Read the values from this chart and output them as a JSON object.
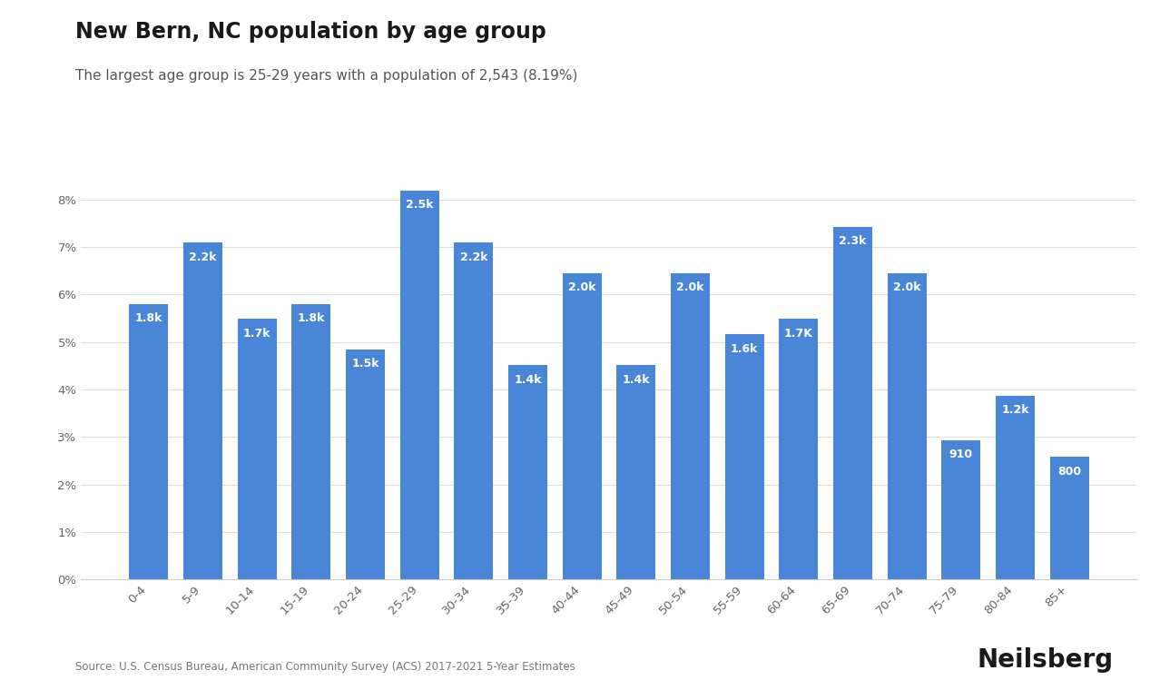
{
  "title": "New Bern, NC population by age group",
  "subtitle": "The largest age group is 25-29 years with a population of 2,543 (8.19%)",
  "categories": [
    "0-4",
    "5-9",
    "10-14",
    "15-19",
    "20-24",
    "25-29",
    "30-34",
    "35-39",
    "40-44",
    "45-49",
    "50-54",
    "55-59",
    "60-64",
    "65-69",
    "70-74",
    "75-79",
    "80-84",
    "85+"
  ],
  "percentages": [
    5.8,
    7.09,
    5.48,
    5.8,
    4.84,
    8.19,
    7.09,
    4.51,
    6.45,
    4.51,
    6.45,
    5.16,
    5.48,
    7.42,
    6.45,
    2.93,
    3.87,
    2.58
  ],
  "bar_labels": [
    "1.8k",
    "2.2k",
    "1.7k",
    "1.8k",
    "1.5k",
    "2.5k",
    "2.2k",
    "1.4k",
    "2.0k",
    "1.4k",
    "2.0k",
    "1.6k",
    "1.7K",
    "2.3k",
    "2.0k",
    "910",
    "1.2k",
    "800"
  ],
  "bar_color": "#4a86d8",
  "background_color": "#ffffff",
  "title_fontsize": 17,
  "subtitle_fontsize": 11,
  "label_fontsize": 9,
  "tick_fontsize": 9.5,
  "source_text": "Source: U.S. Census Bureau, American Community Survey (ACS) 2017-2021 5-Year Estimates",
  "brand_text": "Neilsberg",
  "ylim_max": 9.0,
  "yticks": [
    0,
    1,
    2,
    3,
    4,
    5,
    6,
    7,
    8
  ],
  "ytick_labels": [
    "0%",
    "1%",
    "2%",
    "3%",
    "4%",
    "5%",
    "6%",
    "7%",
    "8%"
  ]
}
